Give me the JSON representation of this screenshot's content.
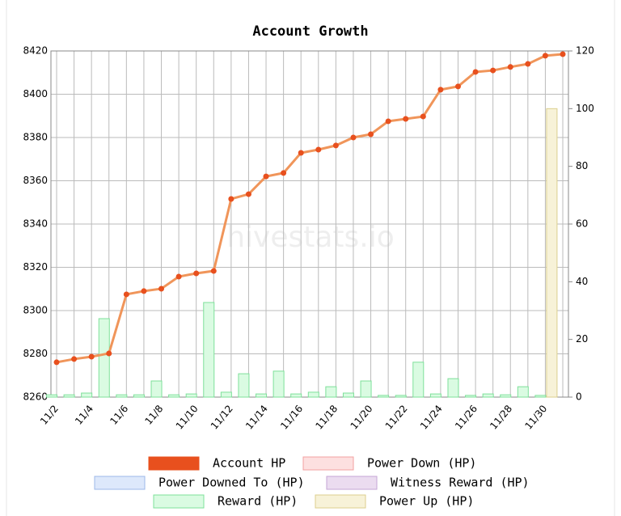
{
  "chart_data": {
    "type": "combo",
    "title": "Account Growth",
    "watermark": "hivestats.io",
    "categories": [
      "11/2",
      null,
      "11/4",
      null,
      "11/6",
      null,
      "11/8",
      null,
      "11/10",
      null,
      "11/12",
      null,
      "11/14",
      null,
      "11/16",
      null,
      "11/18",
      null,
      "11/20",
      null,
      "11/22",
      null,
      "11/24",
      null,
      "11/26",
      null,
      "11/28",
      null,
      "11/30",
      null
    ],
    "series": [
      {
        "name": "Account HP",
        "type": "line",
        "axis": "y",
        "color": "#e8501e",
        "line_color": "#f0955a",
        "values": [
          8276.1,
          8277.6,
          8278.7,
          8280.2,
          8307.5,
          8309,
          8310.1,
          8315.7,
          8317.2,
          8318.3,
          8351.6,
          8353.8,
          8362,
          8363.6,
          8372.9,
          8374.4,
          8376.3,
          8380,
          8381.5,
          8387.5,
          8388.6,
          8389.7,
          8402.1,
          8403.6,
          8410.3,
          8411,
          8412.6,
          8414,
          8417.8,
          8418.5
        ]
      },
      {
        "name": "Power Down (HP)",
        "type": "bar",
        "axis": "y2",
        "color": "#fde0e0",
        "border": "#f2a0a0",
        "values": [
          0,
          0,
          0,
          0,
          0,
          0,
          0,
          0,
          0,
          0,
          0,
          0,
          0,
          0,
          0,
          0,
          0,
          0,
          0,
          0,
          0,
          0,
          0,
          0,
          0,
          0,
          0,
          0,
          0,
          0
        ]
      },
      {
        "name": "Power Downed To (HP)",
        "type": "bar",
        "axis": "y2",
        "color": "#dde8fb",
        "border": "#9db8e8",
        "values": [
          0,
          0,
          0,
          0,
          0,
          0,
          0,
          0,
          0,
          0,
          0,
          0,
          0,
          0,
          0,
          0,
          0,
          0,
          0,
          0,
          0,
          0,
          0,
          0,
          0,
          0,
          0,
          0,
          0,
          0
        ]
      },
      {
        "name": "Witness Reward (HP)",
        "type": "bar",
        "axis": "y2",
        "color": "#ebdcf0",
        "border": "#c6a6d6",
        "values": [
          0,
          0,
          0,
          0,
          0,
          0,
          0,
          0,
          0,
          0,
          0,
          0,
          0,
          0,
          0,
          0,
          0,
          0,
          0,
          0,
          0,
          0,
          0,
          0,
          0,
          0,
          0,
          0,
          0,
          0
        ]
      },
      {
        "name": "Reward (HP)",
        "type": "bar",
        "axis": "y2",
        "color": "#dafbe2",
        "border": "#7ee09a",
        "values": [
          0.8,
          0.8,
          1.4,
          27.2,
          0.8,
          0.8,
          5.6,
          0.8,
          1.1,
          32.8,
          1.7,
          8.1,
          1.1,
          9,
          1.1,
          1.7,
          3.6,
          1.4,
          5.6,
          0.6,
          0.6,
          12.1,
          1.1,
          6.4,
          0.6,
          1.1,
          0.8,
          3.6,
          0.6,
          0
        ]
      },
      {
        "name": "Power Up (HP)",
        "type": "bar",
        "axis": "y2",
        "color": "#f7f2d8",
        "border": "#dccf8e",
        "values": [
          0,
          0,
          0,
          0,
          0,
          0,
          0,
          0,
          0,
          0,
          0,
          0,
          0,
          0,
          0,
          0,
          0,
          0,
          0,
          0,
          0,
          0,
          0,
          0,
          0,
          0,
          0,
          0,
          100,
          0
        ]
      }
    ],
    "ylim": [
      8260,
      8420
    ],
    "yticks": [
      8260,
      8280,
      8300,
      8320,
      8340,
      8360,
      8380,
      8400,
      8420
    ],
    "y2lim": [
      0,
      120
    ],
    "y2ticks": [
      0,
      20,
      40,
      60,
      80,
      100,
      120
    ],
    "grid": true,
    "legend": "bottom"
  }
}
